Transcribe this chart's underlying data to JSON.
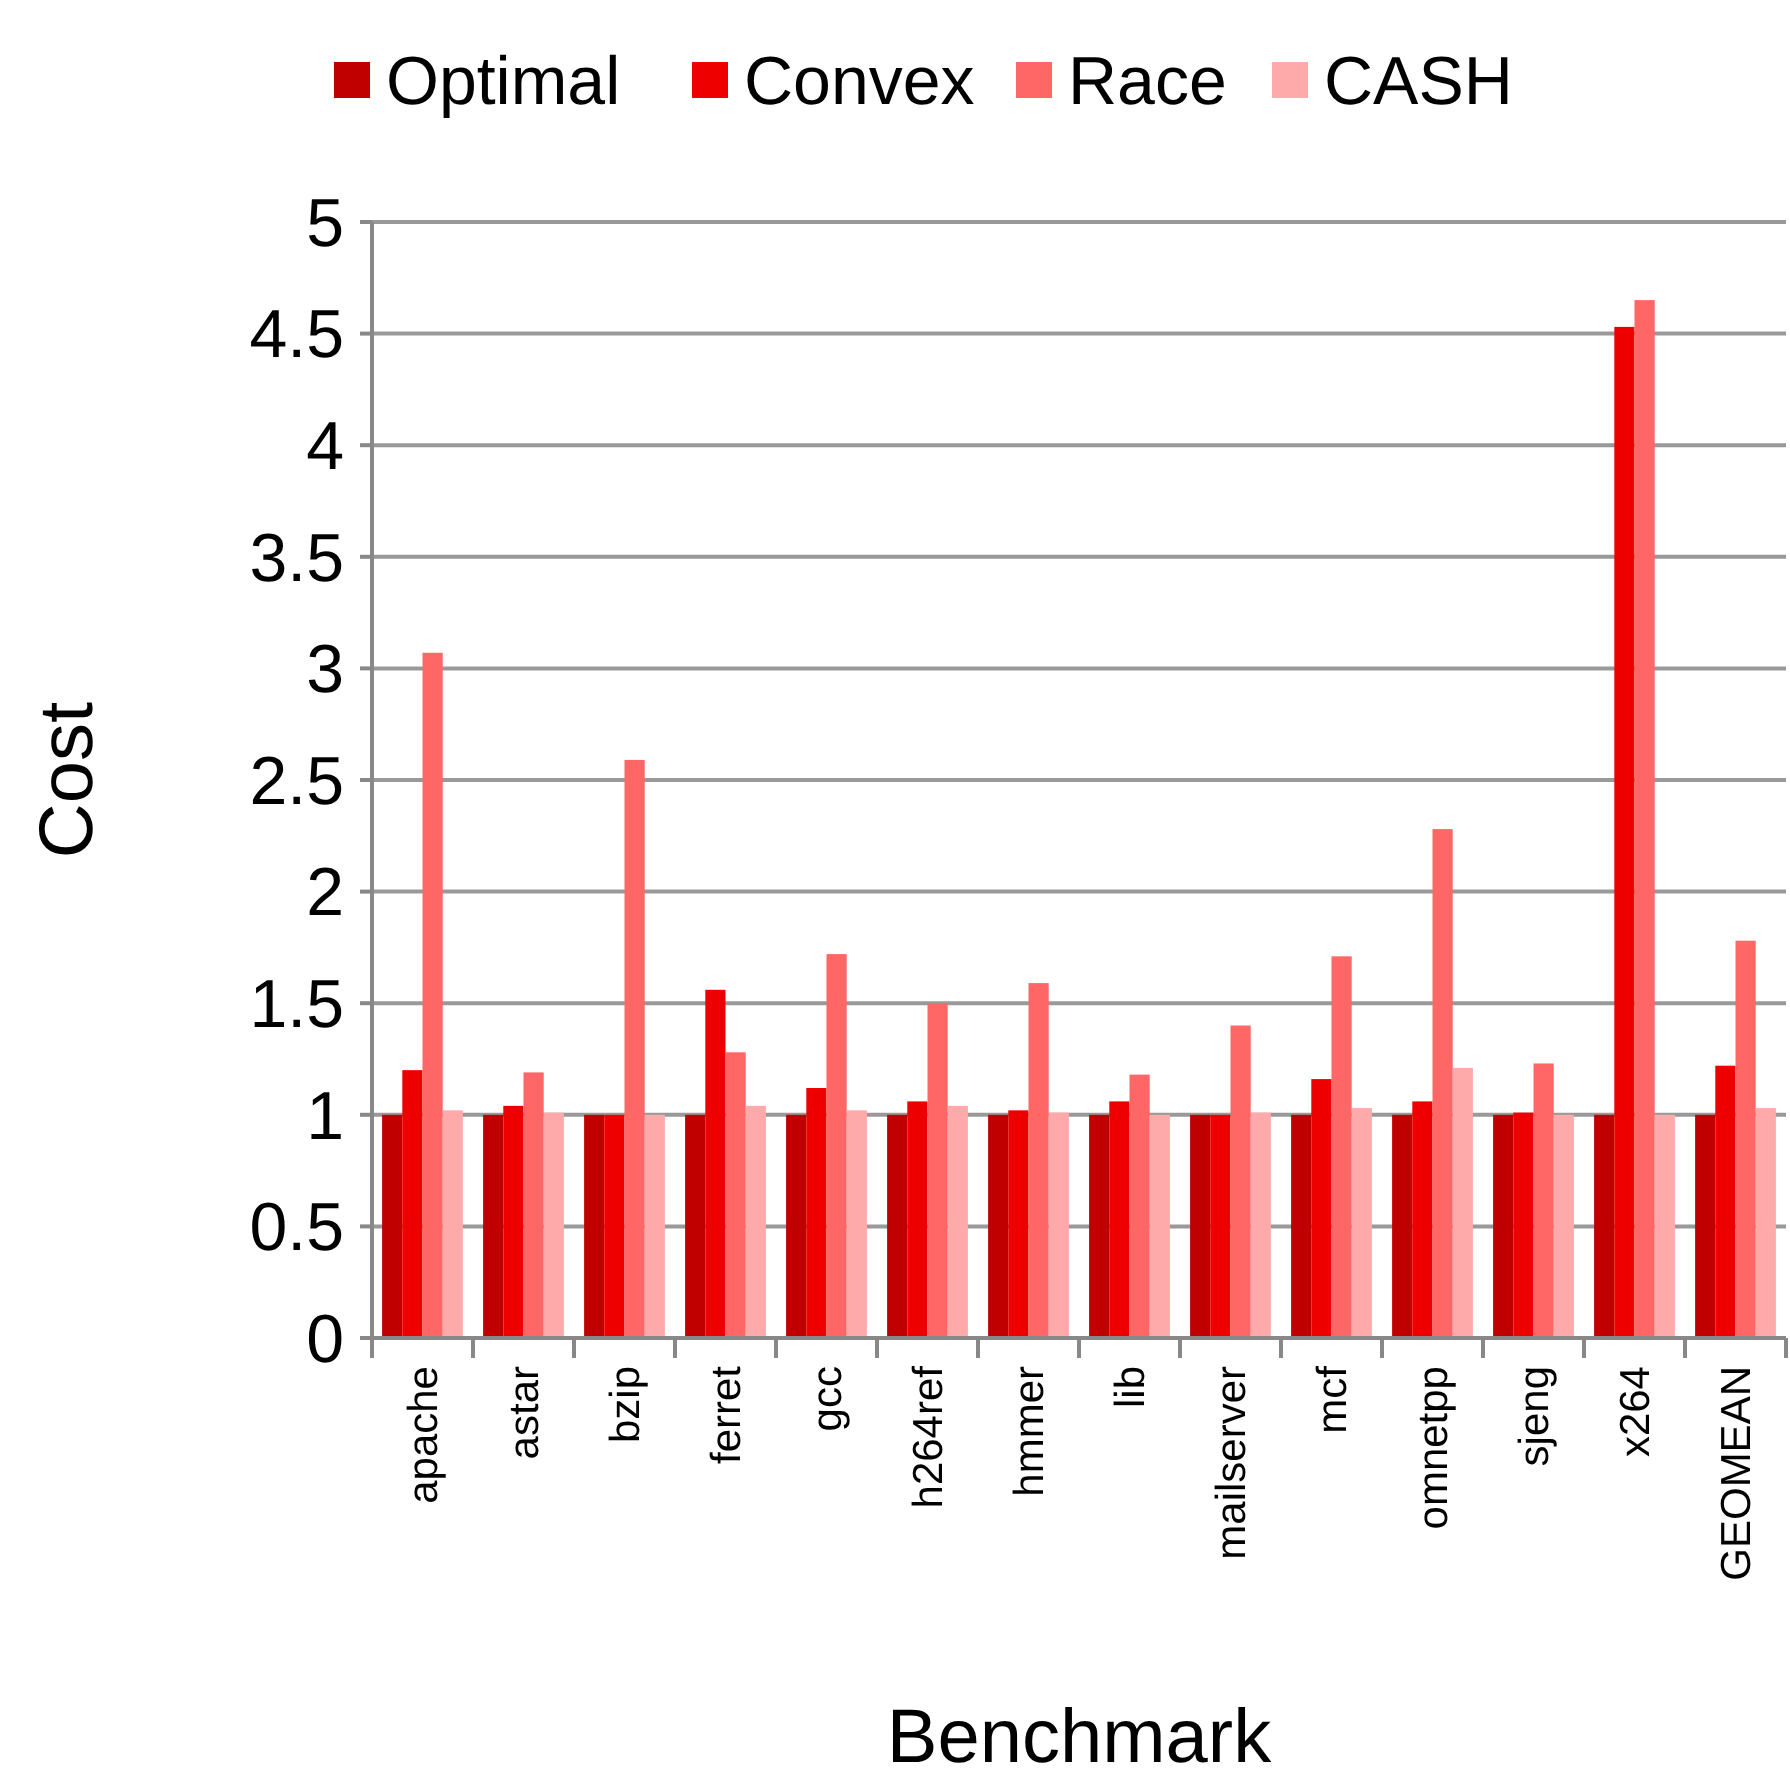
{
  "chart_data": {
    "type": "bar",
    "xlabel": "Benchmark",
    "ylabel": "Cost",
    "categories": [
      "apache",
      "astar",
      "bzip",
      "ferret",
      "gcc",
      "h264ref",
      "hmmer",
      "lib",
      "mailserver",
      "mcf",
      "omnetpp",
      "sjeng",
      "x264",
      "GEOMEAN"
    ],
    "series": [
      {
        "name": "Optimal",
        "color": "#c00000",
        "values": [
          1,
          1,
          1,
          1,
          1,
          1,
          1,
          1,
          1,
          1,
          1,
          1,
          1,
          1
        ]
      },
      {
        "name": "Convex",
        "color": "#ee0000",
        "values": [
          1.2,
          1.04,
          1,
          1.56,
          1.12,
          1.06,
          1.02,
          1.06,
          1,
          1.16,
          1.06,
          1.01,
          4.53,
          1.22
        ]
      },
      {
        "name": "Race",
        "color": "#ff6666",
        "values": [
          3.07,
          1.19,
          2.59,
          1.28,
          1.72,
          1.5,
          1.59,
          1.18,
          1.4,
          1.71,
          2.28,
          1.23,
          4.65,
          1.78
        ]
      },
      {
        "name": "CASH",
        "color": "#ffaaaa",
        "values": [
          1.02,
          1.01,
          1,
          1.04,
          1.02,
          1.04,
          1.01,
          1,
          1.01,
          1.03,
          1.21,
          1,
          1,
          1.03
        ]
      }
    ],
    "ylim": [
      0,
      5
    ],
    "yticks": [
      0,
      0.5,
      1,
      1.5,
      2,
      2.5,
      3,
      3.5,
      4,
      4.5,
      5
    ],
    "grid": "y",
    "legend": "top"
  }
}
